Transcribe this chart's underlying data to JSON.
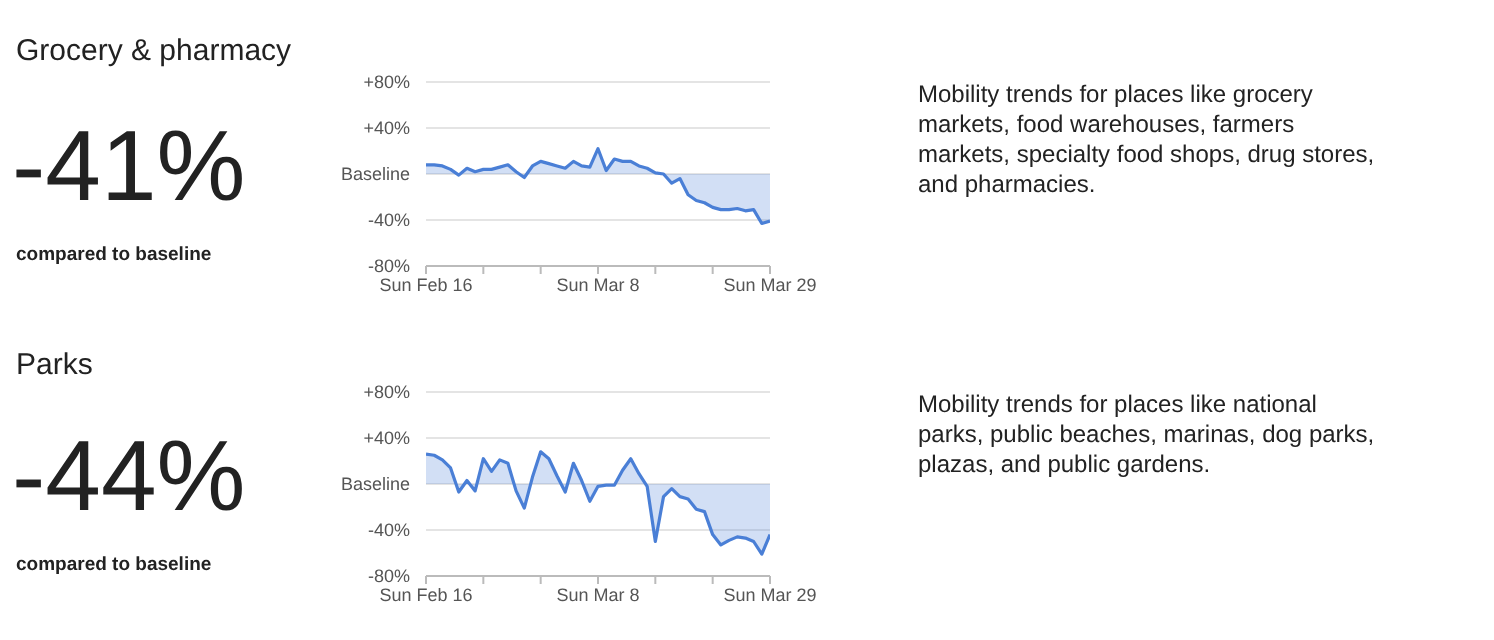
{
  "chart_data": [
    {
      "type": "area",
      "annotations": [
        "Grocery & pharmacy",
        "-41%",
        "compared to baseline",
        "Mobility trends for places like grocery markets, food warehouses, farmers markets, specialty food shops, drug stores, and pharmacies."
      ],
      "x": [
        "--02-16",
        "--02-17",
        "--02-18",
        "--02-19",
        "--02-20",
        "--02-21",
        "--02-22",
        "--02-23",
        "--02-24",
        "--02-25",
        "--02-26",
        "--02-27",
        "--02-28",
        "--02-29",
        "--03-01",
        "--03-02",
        "--03-03",
        "--03-04",
        "--03-05",
        "--03-06",
        "--03-07",
        "--03-08",
        "--03-09",
        "--03-10",
        "--03-11",
        "--03-12",
        "--03-13",
        "--03-14",
        "--03-15",
        "--03-16",
        "--03-17",
        "--03-18",
        "--03-19",
        "--03-20",
        "--03-21",
        "--03-22",
        "--03-23",
        "--03-24",
        "--03-25",
        "--03-26",
        "--03-27",
        "--03-28",
        "--03-29"
      ],
      "series": [
        {
          "color": "#4a7fd6",
          "values": [
            8,
            8,
            7,
            4,
            -1,
            5,
            2,
            4,
            4,
            6,
            8,
            2,
            -3,
            7,
            11,
            9,
            7,
            5,
            11,
            7,
            6,
            22,
            3,
            13,
            11,
            11,
            7,
            5,
            1,
            0,
            -8,
            -4,
            -18,
            -23,
            -25,
            -29,
            -31,
            -31,
            -30,
            -32,
            -31,
            -43,
            -41
          ]
        }
      ],
      "xlim": [
        "--02-16",
        "--03-29"
      ],
      "xticks": [
        {
          "value": "--02-16",
          "label": "Sun Feb 16"
        },
        {
          "value": "--02-23",
          "label": null
        },
        {
          "value": "--03-01",
          "label": null
        },
        {
          "value": "--03-08",
          "label": "Sun Mar 8"
        },
        {
          "value": "--03-15",
          "label": null
        },
        {
          "value": "--03-22",
          "label": null
        },
        {
          "value": "--03-29",
          "label": "Sun Mar 29"
        }
      ],
      "ylim": [
        -80,
        80
      ],
      "yticks": [
        {
          "value": -80,
          "label": "-80%"
        },
        {
          "value": -40,
          "label": "-40%"
        },
        {
          "value": 0,
          "label": "Baseline"
        },
        {
          "value": 40,
          "label": "+40%"
        },
        {
          "value": 80,
          "label": "+80%"
        }
      ],
      "grid": "y"
    },
    {
      "type": "area",
      "annotations": [
        "Parks",
        "-44%",
        "compared to baseline",
        "Mobility trends for places like national parks, public beaches, marinas, dog parks, plazas, and public gardens."
      ],
      "x": [
        "--02-16",
        "--02-17",
        "--02-18",
        "--02-19",
        "--02-20",
        "--02-21",
        "--02-22",
        "--02-23",
        "--02-24",
        "--02-25",
        "--02-26",
        "--02-27",
        "--02-28",
        "--02-29",
        "--03-01",
        "--03-02",
        "--03-03",
        "--03-04",
        "--03-05",
        "--03-06",
        "--03-07",
        "--03-08",
        "--03-09",
        "--03-10",
        "--03-11",
        "--03-12",
        "--03-13",
        "--03-14",
        "--03-15",
        "--03-16",
        "--03-17",
        "--03-18",
        "--03-19",
        "--03-20",
        "--03-21",
        "--03-22",
        "--03-23",
        "--03-24",
        "--03-25",
        "--03-26",
        "--03-27",
        "--03-28",
        "--03-29"
      ],
      "series": [
        {
          "color": "#4a7fd6",
          "values": [
            26,
            25,
            21,
            14,
            -7,
            3,
            -6,
            22,
            11,
            21,
            18,
            -6,
            -21,
            6,
            28,
            22,
            7,
            -7,
            18,
            3,
            -15,
            -2,
            -1,
            -1,
            12,
            22,
            9,
            -2,
            -50,
            -11,
            -4,
            -11,
            -13,
            -22,
            -24,
            -44,
            -53,
            -49,
            -46,
            -47,
            -50,
            -61,
            -44
          ]
        }
      ],
      "xlim": [
        "--02-16",
        "--03-29"
      ],
      "xticks": [
        {
          "value": "--02-16",
          "label": "Sun Feb 16"
        },
        {
          "value": "--02-23",
          "label": null
        },
        {
          "value": "--03-01",
          "label": null
        },
        {
          "value": "--03-08",
          "label": "Sun Mar 8"
        },
        {
          "value": "--03-15",
          "label": null
        },
        {
          "value": "--03-22",
          "label": null
        },
        {
          "value": "--03-29",
          "label": "Sun Mar 29"
        }
      ],
      "ylim": [
        -80,
        80
      ],
      "yticks": [
        {
          "value": -80,
          "label": "-80%"
        },
        {
          "value": -40,
          "label": "-40%"
        },
        {
          "value": 0,
          "label": "Baseline"
        },
        {
          "value": 40,
          "label": "+40%"
        },
        {
          "value": 80,
          "label": "+80%"
        }
      ],
      "grid": "y"
    }
  ]
}
